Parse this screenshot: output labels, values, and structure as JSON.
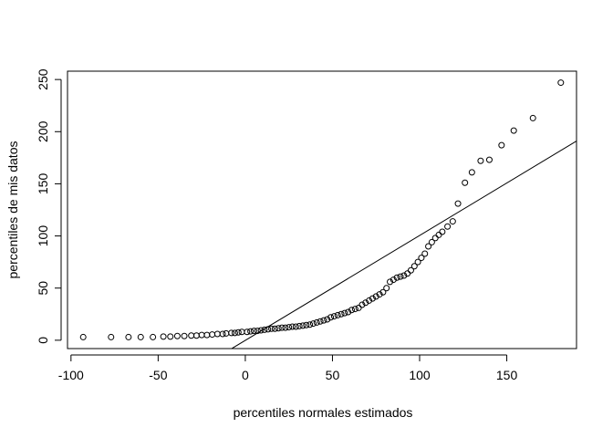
{
  "chart_data": {
    "type": "scatter",
    "title": "",
    "xlabel": "percentiles normales estimados",
    "ylabel": "percentiles de mis datos",
    "xlim": [
      -102,
      190
    ],
    "ylim": [
      -8,
      258
    ],
    "x_ticks": [
      -100,
      -50,
      0,
      50,
      100,
      150
    ],
    "y_ticks": [
      0,
      50,
      100,
      150,
      200,
      250
    ],
    "grid": false,
    "legend": "none",
    "reference_line": {
      "x": [
        -7.8,
        190
      ],
      "y": [
        -8,
        191
      ]
    },
    "points": [
      [
        -93,
        3
      ],
      [
        -77,
        3
      ],
      [
        -67,
        3
      ],
      [
        -60,
        3
      ],
      [
        -53,
        3
      ],
      [
        -47,
        3.5
      ],
      [
        -43,
        3.5
      ],
      [
        -39,
        4
      ],
      [
        -35,
        4
      ],
      [
        -31,
        4.5
      ],
      [
        -28,
        4.5
      ],
      [
        -25,
        5
      ],
      [
        -22,
        5
      ],
      [
        -19,
        5.5
      ],
      [
        -16,
        6
      ],
      [
        -13,
        6
      ],
      [
        -11,
        6.5
      ],
      [
        -8,
        7
      ],
      [
        -6,
        7
      ],
      [
        -4,
        7.5
      ],
      [
        -2,
        8
      ],
      [
        1,
        8
      ],
      [
        3,
        8.5
      ],
      [
        5,
        9
      ],
      [
        7,
        9
      ],
      [
        9,
        9.5
      ],
      [
        11,
        10
      ],
      [
        13,
        10.5
      ],
      [
        15,
        11
      ],
      [
        17,
        11
      ],
      [
        19,
        11.5
      ],
      [
        21,
        12
      ],
      [
        23,
        12
      ],
      [
        25,
        12.5
      ],
      [
        27,
        13
      ],
      [
        29,
        13
      ],
      [
        31,
        13.5
      ],
      [
        33,
        14
      ],
      [
        35,
        14.5
      ],
      [
        37,
        15
      ],
      [
        39,
        16
      ],
      [
        41,
        17
      ],
      [
        43,
        18
      ],
      [
        45,
        19
      ],
      [
        47,
        20
      ],
      [
        49,
        22
      ],
      [
        51,
        23
      ],
      [
        53,
        24
      ],
      [
        55,
        25
      ],
      [
        57,
        26
      ],
      [
        59,
        27
      ],
      [
        61,
        29
      ],
      [
        63,
        30
      ],
      [
        65,
        31
      ],
      [
        67,
        34
      ],
      [
        69,
        36
      ],
      [
        71,
        38
      ],
      [
        73,
        40
      ],
      [
        75,
        42
      ],
      [
        77,
        44
      ],
      [
        79,
        46
      ],
      [
        81,
        50
      ],
      [
        83,
        56
      ],
      [
        85,
        58
      ],
      [
        87,
        60
      ],
      [
        89,
        61
      ],
      [
        91,
        62
      ],
      [
        93,
        64
      ],
      [
        95,
        67
      ],
      [
        97,
        71
      ],
      [
        99,
        75
      ],
      [
        101,
        79
      ],
      [
        103,
        83
      ],
      [
        105,
        90
      ],
      [
        107,
        94
      ],
      [
        109,
        98
      ],
      [
        111,
        101
      ],
      [
        113,
        104
      ],
      [
        116,
        109
      ],
      [
        119,
        114
      ],
      [
        122,
        131
      ],
      [
        126,
        151
      ],
      [
        130,
        161
      ],
      [
        135,
        172
      ],
      [
        140,
        173
      ],
      [
        147,
        187
      ],
      [
        154,
        201
      ],
      [
        165,
        213
      ],
      [
        181,
        247
      ]
    ]
  }
}
